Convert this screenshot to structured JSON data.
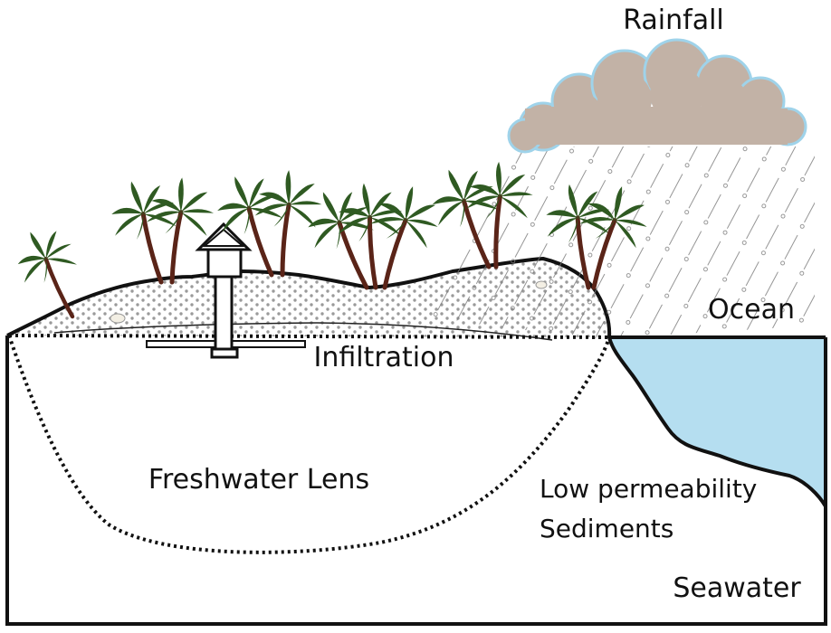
{
  "labels": {
    "rainfall": "Rainfall",
    "ocean": "Ocean",
    "infiltration": "Infiltration",
    "freshwater_lens": "Freshwater Lens",
    "low_permeability_line1": "Low permeability",
    "low_permeability_line2": "Sediments",
    "seawater": "Seawater"
  },
  "colors": {
    "ocean": "#b5def0",
    "cloud": "#c2b2a6",
    "cloud_edge": "#9fd3ea",
    "palm_leaf": "#2f5a22",
    "palm_trunk": "#5a2418",
    "sand_dot": "#9a9a9a",
    "outline": "#111111"
  },
  "icons": {
    "cloud": "cloud-icon",
    "palm": "palm-tree-icon",
    "house": "house-icon",
    "well": "well-icon"
  }
}
